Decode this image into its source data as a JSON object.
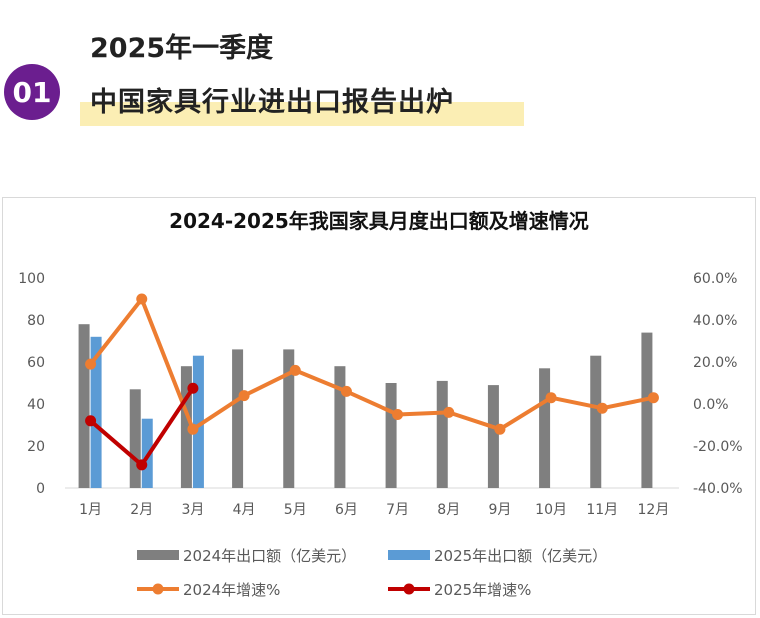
{
  "header": {
    "badge": "01",
    "line1": "2025年一季度",
    "line2": "中国家具行业进出口报告出炉"
  },
  "colors": {
    "badge": "#6b1e8f",
    "highlight": "#fbeeb4",
    "bar2024": "#7f7f7f",
    "bar2025": "#5b9bd5",
    "line2024": "#ed7d31",
    "line2025": "#c00000"
  },
  "chart_data": {
    "type": "bar",
    "title": "2024-2025年我国家具月度出口额及增速情况",
    "categories": [
      "1月",
      "2月",
      "3月",
      "4月",
      "5月",
      "6月",
      "7月",
      "8月",
      "9月",
      "10月",
      "11月",
      "12月"
    ],
    "ylim": [
      0,
      100
    ],
    "yticks": [
      "100",
      "80",
      "60",
      "40",
      "20",
      "0"
    ],
    "y2lim": [
      -40,
      60
    ],
    "y2ticks": [
      "60.0%",
      "40.0%",
      "20.0%",
      "0.0%",
      "-20.0%",
      "-40.0%"
    ],
    "legend_position": "bottom",
    "grid": false,
    "series": [
      {
        "name": "2024年出口额（亿美元）",
        "kind": "bar",
        "axis": "left",
        "values": [
          78,
          47,
          58,
          66,
          66,
          58,
          50,
          51,
          49,
          57,
          63,
          74
        ]
      },
      {
        "name": "2025年出口额（亿美元）",
        "kind": "bar",
        "axis": "left",
        "values": [
          72,
          33,
          63,
          null,
          null,
          null,
          null,
          null,
          null,
          null,
          null,
          null
        ]
      },
      {
        "name": "2024年增速%",
        "kind": "line",
        "axis": "right",
        "values": [
          19,
          50,
          -12,
          4,
          16,
          6,
          -5,
          -4,
          -12,
          3,
          -2,
          3
        ]
      },
      {
        "name": "2025年增速%",
        "kind": "line",
        "axis": "right",
        "values": [
          -8,
          -29,
          7.5,
          null,
          null,
          null,
          null,
          null,
          null,
          null,
          null,
          null
        ]
      }
    ]
  }
}
